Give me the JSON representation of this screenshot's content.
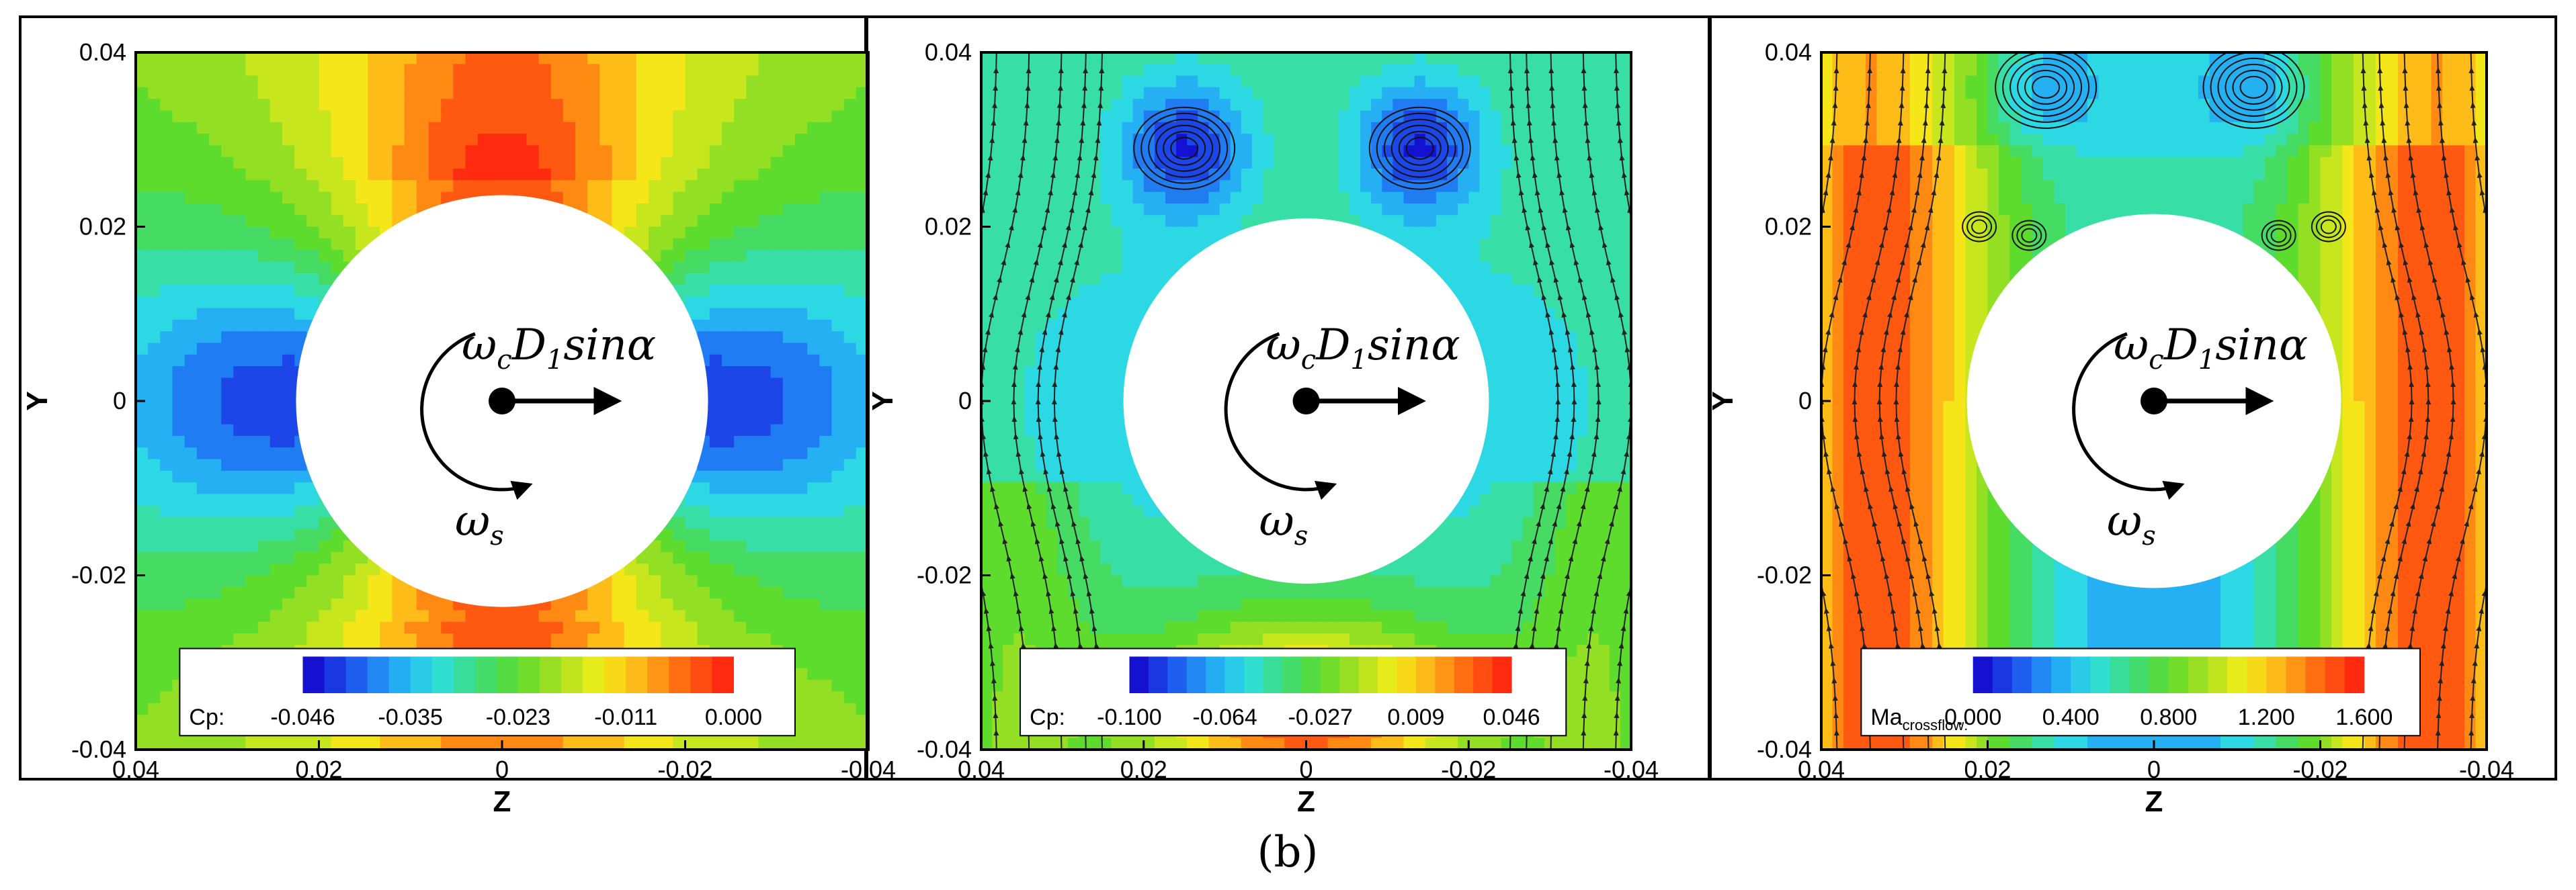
{
  "figure": {
    "caption": "(b)",
    "colors": {
      "cp_low": "#1a2fe0",
      "cp_mid": "#33dd55",
      "cp_high": "#ff3a10",
      "background": "#ffffff"
    }
  },
  "chart_data": [
    {
      "type": "heatmap",
      "title": "",
      "field": "Cp",
      "xlabel": "Z",
      "ylabel": "Y",
      "xlim": [
        0.04,
        -0.04
      ],
      "ylim": [
        -0.04,
        0.04
      ],
      "x_ticks": [
        "0.04",
        "0.02",
        "0",
        "-0.02",
        "-0.04"
      ],
      "y_ticks": [
        "0.04",
        "0.02",
        "0",
        "-0.02",
        "-0.04"
      ],
      "colorbar": {
        "label": "Cp:",
        "label_sub": "",
        "ticks": [
          "-0.046",
          "-0.035",
          "-0.023",
          "-0.011",
          "0.000"
        ],
        "range": [
          -0.046,
          0.0
        ]
      },
      "annotations": {
        "velocity": "ω",
        "velocity_sub": "c",
        "velocity_rest": "D",
        "velocity_rest_sub": "1",
        "velocity_tail": "sinα",
        "spin": "ω",
        "spin_sub": "s"
      },
      "streamlines": false
    },
    {
      "type": "heatmap",
      "title": "",
      "field": "Cp",
      "xlabel": "Z",
      "ylabel": "Y",
      "xlim": [
        0.04,
        -0.04
      ],
      "ylim": [
        -0.04,
        0.04
      ],
      "x_ticks": [
        "0.04",
        "0.02",
        "0",
        "-0.02",
        "-0.04"
      ],
      "y_ticks": [
        "0.04",
        "0.02",
        "0",
        "-0.02",
        "-0.04"
      ],
      "colorbar": {
        "label": "Cp:",
        "label_sub": "",
        "ticks": [
          "-0.100",
          "-0.064",
          "-0.027",
          "0.009",
          "0.046"
        ],
        "range": [
          -0.1,
          0.046
        ]
      },
      "annotations": {
        "velocity": "ω",
        "velocity_sub": "c",
        "velocity_rest": "D",
        "velocity_rest_sub": "1",
        "velocity_tail": "sinα",
        "spin": "ω",
        "spin_sub": "s"
      },
      "streamlines": true
    },
    {
      "type": "heatmap",
      "title": "",
      "field": "Ma_crossflow",
      "xlabel": "Z",
      "ylabel": "Y",
      "xlim": [
        0.04,
        -0.04
      ],
      "ylim": [
        -0.04,
        0.04
      ],
      "x_ticks": [
        "0.04",
        "0.02",
        "0",
        "-0.02",
        "-0.04"
      ],
      "y_ticks": [
        "0.04",
        "0.02",
        "0",
        "-0.02",
        "-0.04"
      ],
      "colorbar": {
        "label": "Ma",
        "label_sub": "crossflow:",
        "ticks": [
          "0.000",
          "0.400",
          "0.800",
          "1.200",
          "1.600"
        ],
        "range": [
          0.0,
          1.6
        ]
      },
      "annotations": {
        "velocity": "ω",
        "velocity_sub": "c",
        "velocity_rest": "D",
        "velocity_rest_sub": "1",
        "velocity_tail": "sinα",
        "spin": "ω",
        "spin_sub": "s"
      },
      "streamlines": true
    }
  ]
}
